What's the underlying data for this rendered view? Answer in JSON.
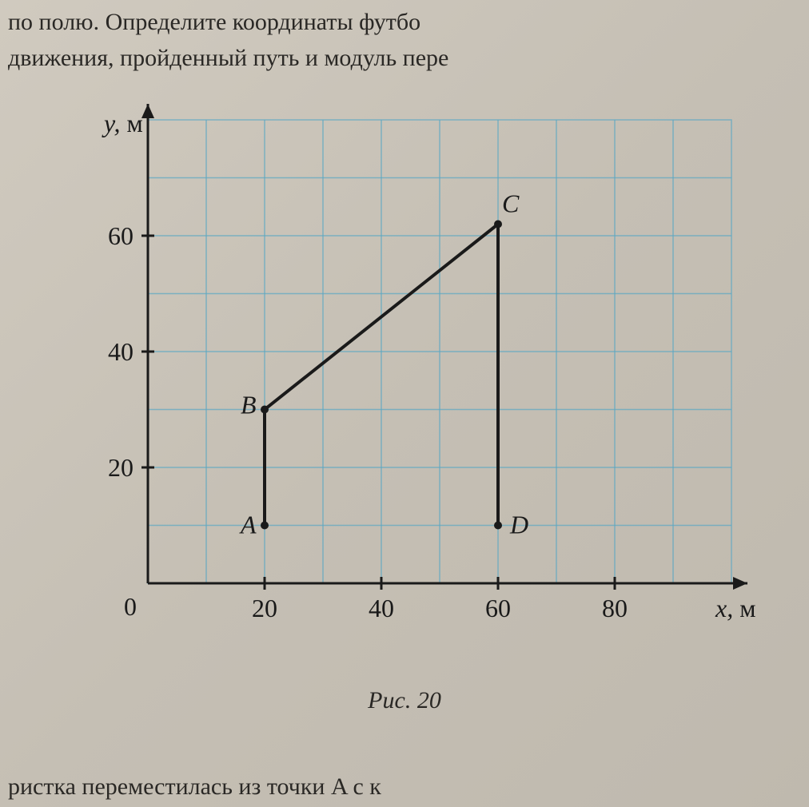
{
  "text": {
    "line1": "по полю. Определите координаты футбо",
    "line2": " движения, пройденный путь и модуль пере",
    "caption": "Рис. 20",
    "bottom": "ристка переместилась из точки A с к"
  },
  "chart": {
    "type": "line",
    "background_color": "#c8c2b8",
    "grid_color": "#5ba8c4",
    "axis_color": "#1a1a1a",
    "plot": {
      "x_min": 0,
      "x_max": 100,
      "y_min": 0,
      "y_max": 80,
      "grid_step_x": 10,
      "grid_step_y": 10
    },
    "x_axis": {
      "label": "x, м",
      "ticks": [
        20,
        40,
        60,
        80
      ],
      "origin_label": "0"
    },
    "y_axis": {
      "label": "y, м",
      "ticks": [
        20,
        40,
        60
      ]
    },
    "points": {
      "A": {
        "x": 20,
        "y": 10,
        "label": "A",
        "label_dx": -30,
        "label_dy": 10
      },
      "B": {
        "x": 20,
        "y": 30,
        "label": "B",
        "label_dx": -30,
        "label_dy": 5
      },
      "C": {
        "x": 60,
        "y": 62,
        "label": "C",
        "label_dx": 5,
        "label_dy": -15
      },
      "D": {
        "x": 60,
        "y": 10,
        "label": "D",
        "label_dx": 15,
        "label_dy": 10
      }
    },
    "segments": [
      [
        "A",
        "B"
      ],
      [
        "B",
        "C"
      ],
      [
        "C",
        "D"
      ]
    ],
    "styling": {
      "line_width": 4,
      "point_radius": 5,
      "tick_fontsize": 32,
      "label_fontsize": 32,
      "axis_label_style": "italic"
    }
  }
}
